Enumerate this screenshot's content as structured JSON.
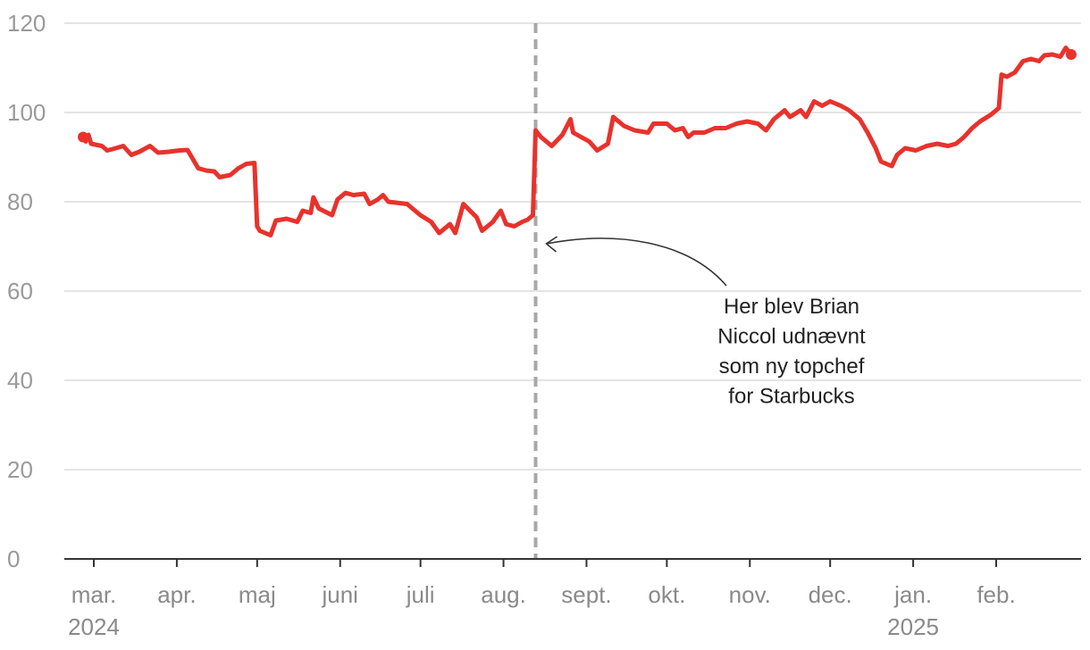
{
  "chart_data": {
    "type": "line",
    "title": "",
    "xlabel": "",
    "ylabel": "",
    "ylim": [
      0,
      120
    ],
    "yticks": [
      0,
      20,
      40,
      60,
      80,
      100,
      120
    ],
    "grid": true,
    "x_ticks": [
      {
        "label": "mar.",
        "year": "2024",
        "date": "2024-03-01"
      },
      {
        "label": "apr.",
        "year": "",
        "date": "2024-04-01"
      },
      {
        "label": "maj",
        "year": "",
        "date": "2024-05-01"
      },
      {
        "label": "juni",
        "year": "",
        "date": "2024-06-01"
      },
      {
        "label": "juli",
        "year": "",
        "date": "2024-07-01"
      },
      {
        "label": "aug.",
        "year": "",
        "date": "2024-08-01"
      },
      {
        "label": "sept.",
        "year": "",
        "date": "2024-09-01"
      },
      {
        "label": "okt.",
        "year": "",
        "date": "2024-10-01"
      },
      {
        "label": "nov.",
        "year": "",
        "date": "2024-11-01"
      },
      {
        "label": "dec.",
        "year": "",
        "date": "2024-12-01"
      },
      {
        "label": "jan.",
        "year": "2025",
        "date": "2025-01-01"
      },
      {
        "label": "feb.",
        "year": "",
        "date": "2025-02-01"
      }
    ],
    "series": [
      {
        "color": "#e8322c",
        "points": [
          [
            "2024-02-26",
            94.5
          ],
          [
            "2024-02-27",
            93.5
          ],
          [
            "2024-02-28",
            95.0
          ],
          [
            "2024-02-29",
            93.0
          ],
          [
            "2024-03-04",
            92.5
          ],
          [
            "2024-03-06",
            91.5
          ],
          [
            "2024-03-08",
            91.8
          ],
          [
            "2024-03-12",
            92.5
          ],
          [
            "2024-03-15",
            90.5
          ],
          [
            "2024-03-18",
            91.2
          ],
          [
            "2024-03-22",
            92.5
          ],
          [
            "2024-03-25",
            91.0
          ],
          [
            "2024-03-29",
            91.2
          ],
          [
            "2024-04-02",
            91.5
          ],
          [
            "2024-04-05",
            91.6
          ],
          [
            "2024-04-09",
            87.5
          ],
          [
            "2024-04-12",
            87.0
          ],
          [
            "2024-04-15",
            86.8
          ],
          [
            "2024-04-17",
            85.5
          ],
          [
            "2024-04-21",
            86.0
          ],
          [
            "2024-04-24",
            87.5
          ],
          [
            "2024-04-27",
            88.5
          ],
          [
            "2024-04-30",
            88.7
          ],
          [
            "2024-05-01",
            74.5
          ],
          [
            "2024-05-02",
            73.5
          ],
          [
            "2024-05-06",
            72.5
          ],
          [
            "2024-05-08",
            75.8
          ],
          [
            "2024-05-12",
            76.2
          ],
          [
            "2024-05-16",
            75.5
          ],
          [
            "2024-05-18",
            78.0
          ],
          [
            "2024-05-21",
            77.5
          ],
          [
            "2024-05-22",
            81.0
          ],
          [
            "2024-05-24",
            78.5
          ],
          [
            "2024-05-29",
            77.0
          ],
          [
            "2024-05-31",
            80.5
          ],
          [
            "2024-06-03",
            82.0
          ],
          [
            "2024-06-06",
            81.5
          ],
          [
            "2024-06-10",
            81.8
          ],
          [
            "2024-06-12",
            79.5
          ],
          [
            "2024-06-15",
            80.5
          ],
          [
            "2024-06-17",
            81.5
          ],
          [
            "2024-06-19",
            80.0
          ],
          [
            "2024-06-26",
            79.5
          ],
          [
            "2024-06-28",
            78.5
          ],
          [
            "2024-07-01",
            77.0
          ],
          [
            "2024-07-05",
            75.5
          ],
          [
            "2024-07-08",
            73.0
          ],
          [
            "2024-07-12",
            75.0
          ],
          [
            "2024-07-14",
            73.0
          ],
          [
            "2024-07-17",
            79.5
          ],
          [
            "2024-07-22",
            76.5
          ],
          [
            "2024-07-24",
            73.5
          ],
          [
            "2024-07-28",
            75.5
          ],
          [
            "2024-07-31",
            78.0
          ],
          [
            "2024-08-02",
            75.0
          ],
          [
            "2024-08-05",
            74.5
          ],
          [
            "2024-08-08",
            75.5
          ],
          [
            "2024-08-10",
            76.0
          ],
          [
            "2024-08-12",
            77.0
          ],
          [
            "2024-08-13",
            96.0
          ],
          [
            "2024-08-15",
            94.5
          ],
          [
            "2024-08-19",
            92.5
          ],
          [
            "2024-08-23",
            95.0
          ],
          [
            "2024-08-26",
            98.5
          ],
          [
            "2024-08-27",
            95.5
          ],
          [
            "2024-09-02",
            93.5
          ],
          [
            "2024-09-05",
            91.5
          ],
          [
            "2024-09-09",
            93.0
          ],
          [
            "2024-09-11",
            99.0
          ],
          [
            "2024-09-15",
            97.0
          ],
          [
            "2024-09-19",
            96.0
          ],
          [
            "2024-09-24",
            95.5
          ],
          [
            "2024-09-26",
            97.5
          ],
          [
            "2024-10-01",
            97.5
          ],
          [
            "2024-10-04",
            96.0
          ],
          [
            "2024-10-07",
            96.5
          ],
          [
            "2024-10-09",
            94.5
          ],
          [
            "2024-10-11",
            95.5
          ],
          [
            "2024-10-15",
            95.5
          ],
          [
            "2024-10-19",
            96.5
          ],
          [
            "2024-10-23",
            96.5
          ],
          [
            "2024-10-27",
            97.5
          ],
          [
            "2024-10-31",
            98.0
          ],
          [
            "2024-11-04",
            97.5
          ],
          [
            "2024-11-07",
            96.0
          ],
          [
            "2024-11-10",
            98.5
          ],
          [
            "2024-11-14",
            100.5
          ],
          [
            "2024-11-16",
            99.0
          ],
          [
            "2024-11-20",
            100.5
          ],
          [
            "2024-11-22",
            99.0
          ],
          [
            "2024-11-25",
            102.5
          ],
          [
            "2024-11-28",
            101.5
          ],
          [
            "2024-12-01",
            102.5
          ],
          [
            "2024-12-05",
            101.5
          ],
          [
            "2024-12-08",
            100.5
          ],
          [
            "2024-12-12",
            98.5
          ],
          [
            "2024-12-15",
            95.5
          ],
          [
            "2024-12-18",
            92.0
          ],
          [
            "2024-12-20",
            89.0
          ],
          [
            "2024-12-24",
            88.0
          ],
          [
            "2024-12-26",
            90.5
          ],
          [
            "2024-12-29",
            92.0
          ],
          [
            "2025-01-02",
            91.5
          ],
          [
            "2025-01-06",
            92.5
          ],
          [
            "2025-01-10",
            93.0
          ],
          [
            "2025-01-14",
            92.5
          ],
          [
            "2025-01-17",
            93.0
          ],
          [
            "2025-01-20",
            94.5
          ],
          [
            "2025-01-23",
            96.5
          ],
          [
            "2025-01-26",
            98.0
          ],
          [
            "2025-01-30",
            99.5
          ],
          [
            "2025-02-02",
            101.0
          ],
          [
            "2025-02-03",
            108.5
          ],
          [
            "2025-02-05",
            108.0
          ],
          [
            "2025-02-08",
            109.0
          ],
          [
            "2025-02-11",
            111.5
          ],
          [
            "2025-02-14",
            112.0
          ],
          [
            "2025-02-17",
            111.5
          ],
          [
            "2025-02-19",
            112.8
          ],
          [
            "2025-02-22",
            113.0
          ],
          [
            "2025-02-25",
            112.5
          ],
          [
            "2025-02-27",
            114.5
          ],
          [
            "2025-03-01",
            113.0
          ]
        ]
      }
    ],
    "reference_line": {
      "date": "2024-08-13",
      "style": "dashed",
      "color": "#a8a8a8"
    },
    "annotation": {
      "lines": [
        "Her blev Brian",
        "Niccol udnævnt",
        "som ny topchef",
        "for Starbucks"
      ],
      "arrow_to": {
        "date": "2024-08-13",
        "value": 72
      }
    }
  }
}
